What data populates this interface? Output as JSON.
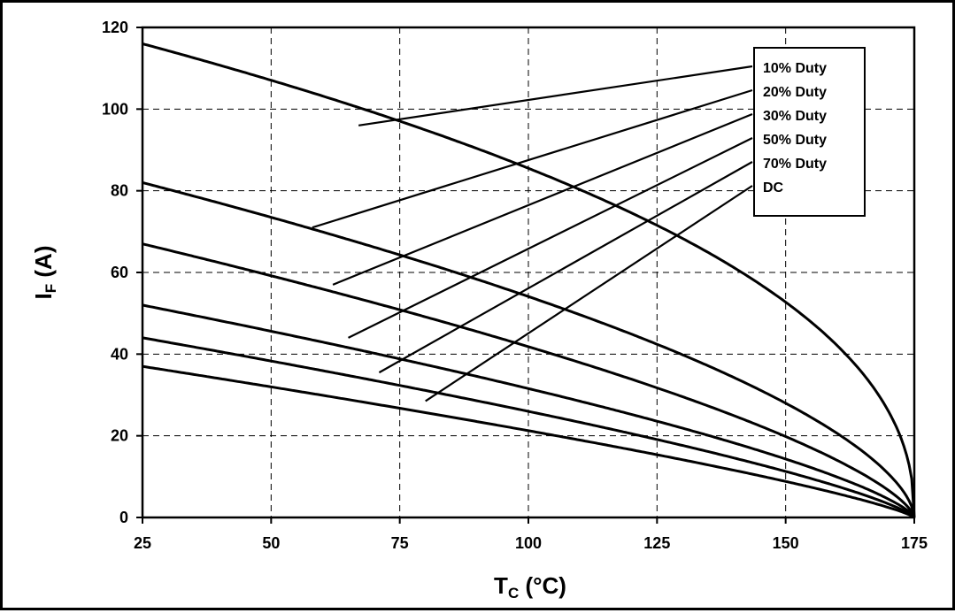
{
  "chart_data": {
    "type": "line",
    "xlabel": {
      "main": "T",
      "sub": "C",
      "suffix": " (°C)"
    },
    "ylabel": {
      "main": "I",
      "sub": "F",
      "suffix": " (A)"
    },
    "xlim": [
      25,
      175
    ],
    "ylim": [
      0,
      120
    ],
    "xticks": [
      25,
      50,
      75,
      100,
      125,
      150,
      175
    ],
    "yticks": [
      0,
      20,
      40,
      60,
      80,
      100,
      120
    ],
    "grid": true,
    "legend_placement": "top-right",
    "series": [
      {
        "name": "10% Duty",
        "start": [
          25,
          116
        ],
        "end": [
          175,
          0
        ],
        "exponent": 0.44,
        "callout_point": [
          67,
          96
        ]
      },
      {
        "name": "20% Duty",
        "start": [
          25,
          82
        ],
        "end": [
          175,
          0
        ],
        "exponent": 0.6,
        "callout_point": [
          58,
          71
        ]
      },
      {
        "name": "30% Duty",
        "start": [
          25,
          67
        ],
        "end": [
          175,
          0
        ],
        "exponent": 0.68,
        "callout_point": [
          62,
          57
        ]
      },
      {
        "name": "50% Duty",
        "start": [
          25,
          52
        ],
        "end": [
          175,
          0
        ],
        "exponent": 0.72,
        "callout_point": [
          65,
          44
        ]
      },
      {
        "name": "70% Duty",
        "start": [
          25,
          44
        ],
        "end": [
          175,
          0
        ],
        "exponent": 0.76,
        "callout_point": [
          71,
          35.5
        ]
      },
      {
        "name": "DC",
        "start": [
          25,
          37
        ],
        "end": [
          175,
          0
        ],
        "exponent": 0.8,
        "callout_point": [
          80,
          28.5
        ]
      }
    ]
  }
}
